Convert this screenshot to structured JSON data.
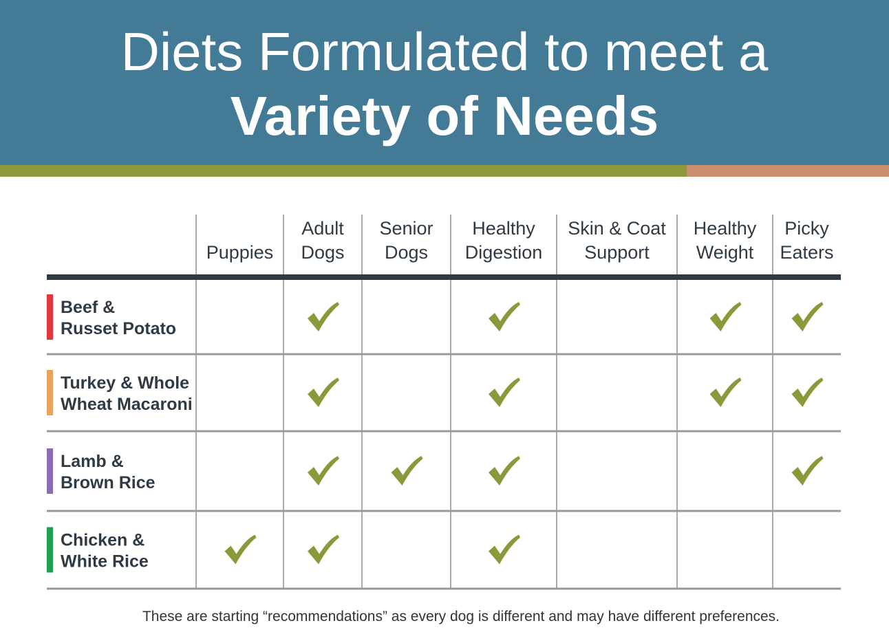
{
  "header": {
    "title_line1": "Diets Formulated to meet a",
    "title_line2": "Variety of Needs"
  },
  "table": {
    "columns": [
      [
        "Puppies"
      ],
      [
        "Adult",
        "Dogs"
      ],
      [
        "Senior",
        "Dogs"
      ],
      [
        "Healthy",
        "Digestion"
      ],
      [
        "Skin & Coat",
        "Support"
      ],
      [
        "Healthy",
        "Weight"
      ],
      [
        "Picky",
        "Eaters"
      ]
    ],
    "rows": [
      {
        "name": [
          "Beef &",
          "Russet Potato"
        ],
        "color": "#e0383e",
        "checks": [
          false,
          true,
          false,
          true,
          false,
          true,
          true
        ]
      },
      {
        "name": [
          "Turkey & Whole",
          "Wheat Macaroni"
        ],
        "color": "#e9a35c",
        "checks": [
          false,
          true,
          false,
          true,
          false,
          true,
          true
        ]
      },
      {
        "name": [
          "Lamb &",
          "Brown Rice"
        ],
        "color": "#8b6bb1",
        "checks": [
          false,
          true,
          true,
          true,
          false,
          false,
          true
        ]
      },
      {
        "name": [
          "Chicken &",
          "White Rice"
        ],
        "color": "#1fa050",
        "checks": [
          true,
          true,
          false,
          true,
          false,
          false,
          false
        ]
      }
    ]
  },
  "footer": {
    "note": "These are starting “recommendations” as every dog is different and may have different preferences."
  }
}
